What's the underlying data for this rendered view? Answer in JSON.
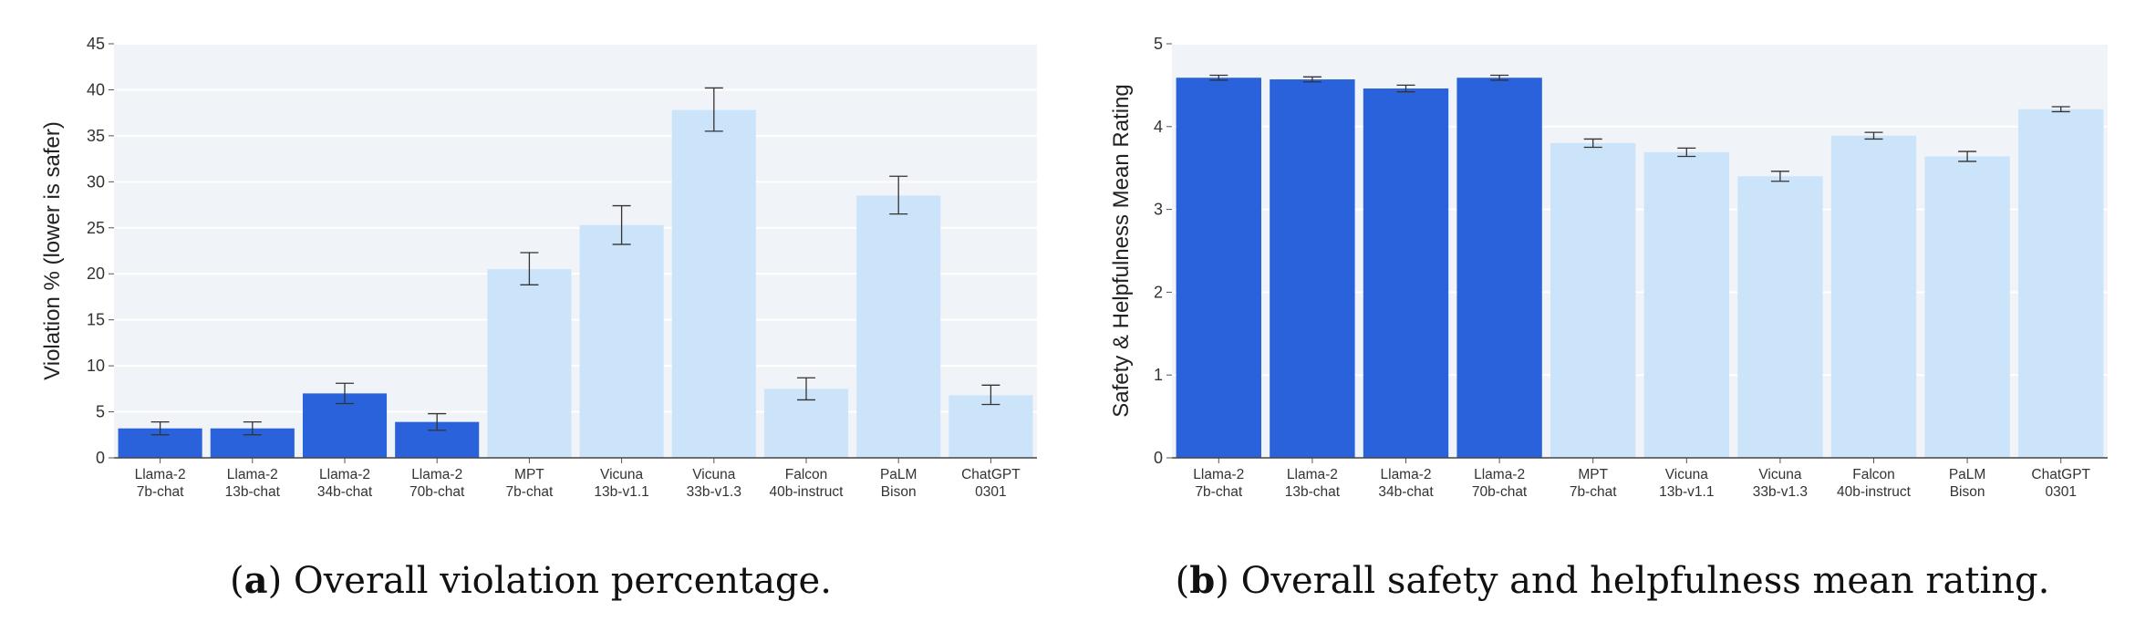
{
  "captions": {
    "a": {
      "label": "a",
      "text": "Overall violation percentage."
    },
    "b": {
      "label": "b",
      "text": "Overall safety and helpfulness mean rating."
    }
  },
  "colors": {
    "llama": "#2962db",
    "other": "#cce4fa",
    "plot_bg": "#f0f3f7",
    "grid": "#ffffff",
    "errorbar": "#333333"
  },
  "chart_data": [
    {
      "type": "bar",
      "id": "a",
      "title": "",
      "xlabel": "",
      "ylabel": "Violation % (lower is safer)",
      "ylim": [
        0,
        45
      ],
      "yticks": [
        0,
        5,
        10,
        15,
        20,
        25,
        30,
        35,
        40,
        45
      ],
      "grid": true,
      "categories": [
        [
          "Llama-2",
          "7b-chat"
        ],
        [
          "Llama-2",
          "13b-chat"
        ],
        [
          "Llama-2",
          "34b-chat"
        ],
        [
          "Llama-2",
          "70b-chat"
        ],
        [
          "MPT",
          "7b-chat"
        ],
        [
          "Vicuna",
          "13b-v1.1"
        ],
        [
          "Vicuna",
          "33b-v1.3"
        ],
        [
          "Falcon",
          "40b-instruct"
        ],
        [
          "PaLM",
          "Bison"
        ],
        [
          "ChatGPT",
          "0301"
        ]
      ],
      "values": [
        3.2,
        3.2,
        7.0,
        3.9,
        20.5,
        25.3,
        37.8,
        7.5,
        28.5,
        6.8
      ],
      "error_low": [
        2.5,
        2.5,
        5.9,
        3.0,
        18.8,
        23.2,
        35.5,
        6.3,
        26.5,
        5.8
      ],
      "error_high": [
        3.9,
        3.9,
        8.1,
        4.8,
        22.3,
        27.4,
        40.2,
        8.7,
        30.6,
        7.9
      ],
      "highlight": [
        true,
        true,
        true,
        true,
        false,
        false,
        false,
        false,
        false,
        false
      ]
    },
    {
      "type": "bar",
      "id": "b",
      "title": "",
      "xlabel": "",
      "ylabel": "Safety & Helpfulness Mean Rating",
      "ylim": [
        0,
        5
      ],
      "yticks": [
        0,
        1,
        2,
        3,
        4,
        5
      ],
      "grid": true,
      "categories": [
        [
          "Llama-2",
          "7b-chat"
        ],
        [
          "Llama-2",
          "13b-chat"
        ],
        [
          "Llama-2",
          "34b-chat"
        ],
        [
          "Llama-2",
          "70b-chat"
        ],
        [
          "MPT",
          "7b-chat"
        ],
        [
          "Vicuna",
          "13b-v1.1"
        ],
        [
          "Vicuna",
          "33b-v1.3"
        ],
        [
          "Falcon",
          "40b-instruct"
        ],
        [
          "PaLM",
          "Bison"
        ],
        [
          "ChatGPT",
          "0301"
        ]
      ],
      "values": [
        4.59,
        4.57,
        4.46,
        4.59,
        3.8,
        3.69,
        3.4,
        3.89,
        3.64,
        4.21
      ],
      "error_low": [
        4.56,
        4.54,
        4.42,
        4.56,
        3.75,
        3.64,
        3.34,
        3.85,
        3.58,
        4.18
      ],
      "error_high": [
        4.62,
        4.6,
        4.5,
        4.62,
        3.85,
        3.74,
        3.46,
        3.93,
        3.7,
        4.24
      ],
      "highlight": [
        true,
        true,
        true,
        true,
        false,
        false,
        false,
        false,
        false,
        false
      ]
    }
  ]
}
